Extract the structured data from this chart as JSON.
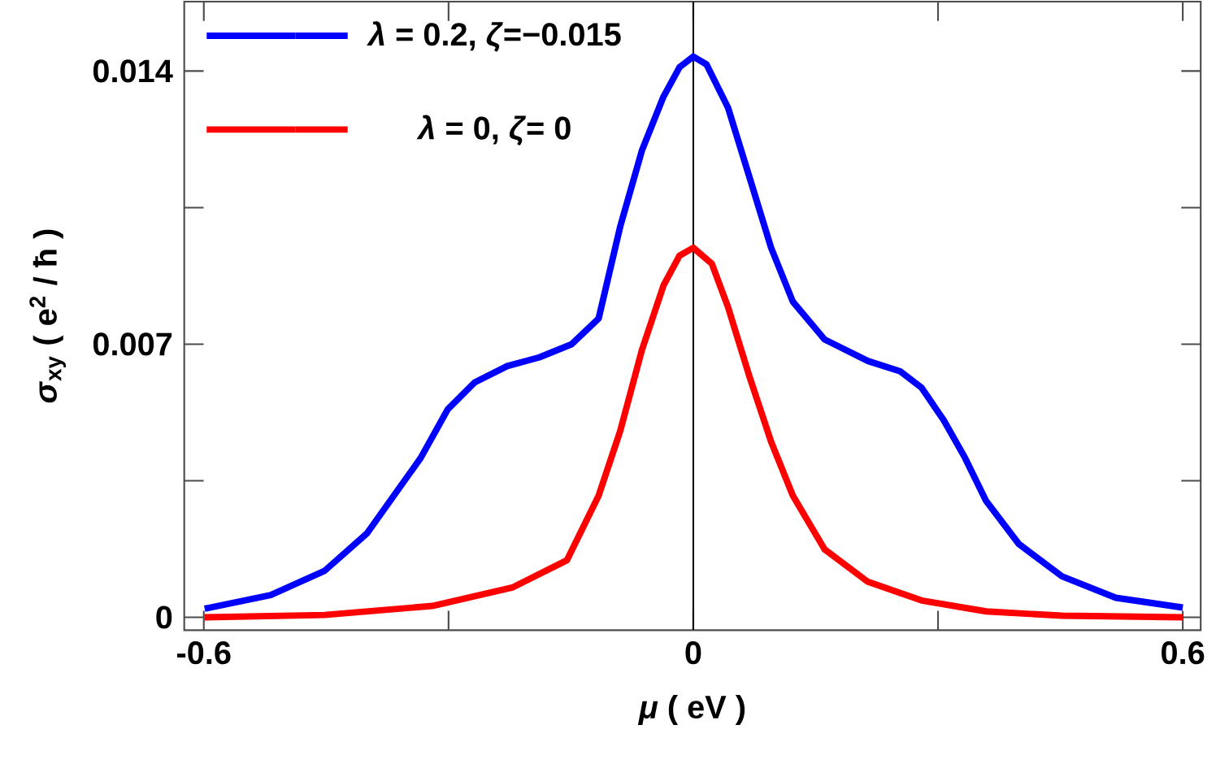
{
  "chart_data": {
    "type": "line",
    "xlabel": "*μ* ( eV )",
    "ylabel": "*σ*$_{xy}$ ( e$^{2}$ / ħ )",
    "xlim": [
      -0.624,
      0.622
    ],
    "ylim": [
      -0.00033,
      0.01578
    ],
    "xticks": [
      -0.6,
      {
        "value": -0.3,
        "label": null
      },
      0,
      {
        "value": 0.3,
        "label": null
      },
      0.6
    ],
    "yticks": [
      0,
      {
        "value": 0.0035,
        "label": null
      },
      0.007,
      {
        "value": 0.0105,
        "label": null
      },
      0.014
    ],
    "legend": "top left",
    "marker": "none",
    "line_style": "solid",
    "ref_lines": [
      {
        "axis": "x",
        "value": 0,
        "color": "#000000"
      }
    ],
    "series": [
      {
        "name": "*λ* = 0.2, *ζ*=−0.015",
        "color": "#0000ff",
        "x": [
          -0.599,
          -0.518,
          -0.452,
          -0.4,
          -0.367,
          -0.334,
          -0.301,
          -0.268,
          -0.228,
          -0.189,
          -0.149,
          -0.116,
          -0.0895,
          -0.063,
          -0.0366,
          -0.0168,
          0,
          0.0162,
          0.0426,
          0.069,
          0.0954,
          0.122,
          0.161,
          0.214,
          0.254,
          0.28,
          0.307,
          0.333,
          0.359,
          0.399,
          0.452,
          0.518,
          0.6
        ],
        "values": [
          0.00022,
          0.00057,
          0.00119,
          0.00215,
          0.00312,
          0.00409,
          0.00533,
          0.00602,
          0.00644,
          0.00666,
          0.007,
          0.00766,
          0.01002,
          0.01196,
          0.01334,
          0.0141,
          0.01437,
          0.01417,
          0.01306,
          0.01127,
          0.00947,
          0.00809,
          0.00712,
          0.00657,
          0.0063,
          0.00588,
          0.00505,
          0.00409,
          0.00298,
          0.00188,
          0.00105,
          0.0005,
          0.00025
        ]
      },
      {
        "name": "*λ* = 0, *ζ*= 0",
        "color": "#ff0000",
        "x": [
          -0.599,
          -0.452,
          -0.32,
          -0.221,
          -0.155,
          -0.116,
          -0.0895,
          -0.063,
          -0.0366,
          -0.0168,
          0,
          0.0228,
          0.0426,
          0.069,
          0.0954,
          0.122,
          0.161,
          0.214,
          0.28,
          0.359,
          0.452,
          0.6
        ],
        "values": [
          0,
          6e-05,
          0.00029,
          0.00077,
          0.00146,
          0.00312,
          0.00478,
          0.00685,
          0.0085,
          0.00927,
          0.00947,
          0.00906,
          0.00795,
          0.00616,
          0.0045,
          0.00312,
          0.00174,
          0.00091,
          0.00043,
          0.00015,
          4e-05,
          0
        ]
      }
    ]
  }
}
